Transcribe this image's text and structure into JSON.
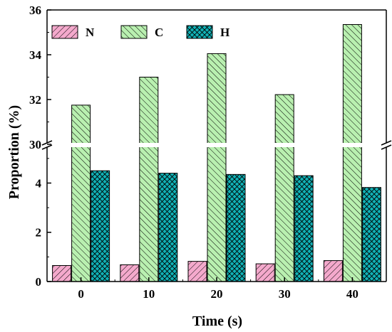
{
  "chart_data": {
    "type": "bar",
    "xlabel": "Time (s)",
    "ylabel": "Proportion (%)",
    "categories": [
      "0",
      "10",
      "20",
      "30",
      "40"
    ],
    "y_axis_break": true,
    "lower_ylim": [
      0,
      5.4
    ],
    "upper_ylim": [
      30,
      36
    ],
    "lower_yticks": [
      "0",
      "2",
      "4"
    ],
    "upper_yticks": [
      "30",
      "32",
      "34",
      "36"
    ],
    "legend_position": "top-left",
    "series": [
      {
        "name": "N",
        "values": [
          0.65,
          0.68,
          0.82,
          0.72,
          0.85
        ],
        "color": "#f4a9cc",
        "hatch": "forward-diagonal"
      },
      {
        "name": "C",
        "values": [
          31.75,
          33.0,
          34.05,
          32.22,
          35.35
        ],
        "color": "#b9f0b0",
        "hatch": "back-diagonal"
      },
      {
        "name": "H",
        "values": [
          4.5,
          4.4,
          4.35,
          4.3,
          3.82
        ],
        "color": "#11b2b6",
        "hatch": "cross"
      }
    ]
  }
}
